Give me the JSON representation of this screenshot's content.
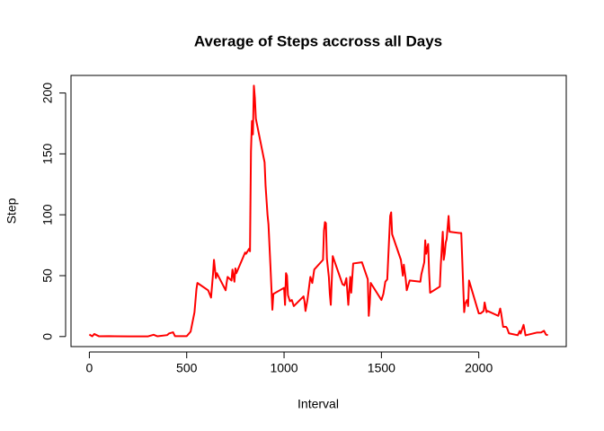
{
  "chart_data": {
    "type": "line",
    "title": "Average of Steps accross all Days",
    "x_label": "Interval",
    "y_label": "Step",
    "xlim": [
      -94.2,
      2449.2
    ],
    "ylim": [
      -8.25,
      214.42
    ],
    "xticks": [
      0,
      500,
      1000,
      1500,
      2000
    ],
    "yticks": [
      0,
      50,
      100,
      150,
      200
    ],
    "series": [
      {
        "color": "#ff0000",
        "x": [
          0,
          15,
          25,
          50,
          100,
          200,
          300,
          330,
          350,
          400,
          410,
          430,
          440,
          500,
          520,
          540,
          550,
          555,
          610,
          625,
          635,
          640,
          650,
          655,
          700,
          705,
          710,
          730,
          735,
          745,
          750,
          755,
          800,
          805,
          820,
          825,
          830,
          835,
          840,
          845,
          850,
          855,
          900,
          905,
          915,
          920,
          930,
          940,
          945,
          1000,
          1005,
          1010,
          1015,
          1020,
          1030,
          1040,
          1050,
          1100,
          1105,
          1110,
          1120,
          1135,
          1145,
          1155,
          1200,
          1205,
          1210,
          1215,
          1220,
          1230,
          1235,
          1240,
          1250,
          1300,
          1310,
          1320,
          1330,
          1340,
          1345,
          1355,
          1400,
          1415,
          1430,
          1435,
          1440,
          1445,
          1500,
          1510,
          1520,
          1530,
          1540,
          1545,
          1550,
          1555,
          1600,
          1610,
          1615,
          1625,
          1630,
          1645,
          1700,
          1705,
          1720,
          1725,
          1730,
          1740,
          1745,
          1750,
          1800,
          1805,
          1815,
          1820,
          1825,
          1830,
          1835,
          1845,
          1850,
          1900,
          1910,
          1925,
          1930,
          1940,
          1945,
          1950,
          2000,
          2010,
          2025,
          2030,
          2040,
          2045,
          2100,
          2110,
          2115,
          2125,
          2140,
          2145,
          2155,
          2200,
          2210,
          2215,
          2230,
          2240,
          2300,
          2320,
          2335,
          2345,
          2355
        ],
        "values": [
          1.7,
          0.2,
          2.1,
          0.2,
          0.3,
          0.1,
          0.1,
          1.5,
          0.2,
          1.2,
          2.6,
          3.5,
          0.3,
          0.3,
          4,
          20,
          39,
          44,
          38,
          32,
          51,
          63,
          48,
          52,
          38,
          44,
          49,
          46,
          55,
          45,
          56,
          52,
          69,
          68,
          72,
          70,
          152,
          177,
          166,
          206,
          196,
          179,
          143,
          124,
          100,
          92,
          58,
          22,
          35,
          40,
          26,
          52,
          50,
          34,
          29,
          30,
          25,
          33,
          29,
          21,
          30,
          49,
          44,
          55,
          63,
          87,
          94,
          93,
          64,
          49,
          35,
          26,
          66,
          43,
          42,
          48,
          26,
          49,
          36,
          60,
          61,
          54,
          47,
          17,
          27,
          44,
          30,
          35,
          45,
          47,
          82,
          99,
          102,
          84,
          63,
          50,
          59,
          47,
          38,
          46,
          45,
          51,
          61,
          79,
          68,
          76,
          52,
          36,
          41,
          59,
          86,
          63,
          68,
          77,
          80,
          99,
          86,
          85,
          85,
          20,
          27,
          30,
          25,
          46,
          19,
          19,
          21,
          28,
          20,
          21,
          17,
          23,
          19,
          8,
          8,
          7,
          2.6,
          1.1,
          4.5,
          2.5,
          9.6,
          1.0,
          3.3,
          3.4,
          4.7,
          1.6,
          1.1
        ]
      }
    ]
  }
}
